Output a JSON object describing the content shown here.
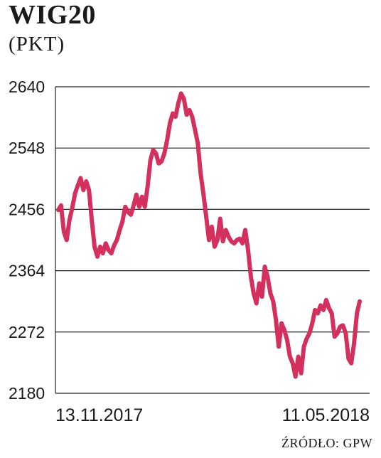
{
  "chart_data": {
    "type": "line",
    "title": "WIG20",
    "subtitle": "(PKT)",
    "source": "ŹRÓDŁO: GPW",
    "x_start_label": "13.11.2017",
    "x_end_label": "11.05.2018",
    "ylim": [
      2180,
      2640
    ],
    "yticks": [
      "2640",
      "2548",
      "2456",
      "2364",
      "2272",
      "2180"
    ],
    "grid": true,
    "series": [
      {
        "color": "#d3305d",
        "values": [
          2455,
          2462,
          2422,
          2410,
          2440,
          2458,
          2480,
          2492,
          2503,
          2485,
          2498,
          2485,
          2440,
          2400,
          2385,
          2400,
          2390,
          2405,
          2395,
          2390,
          2402,
          2410,
          2425,
          2438,
          2460,
          2452,
          2448,
          2462,
          2478,
          2460,
          2475,
          2460,
          2490,
          2530,
          2545,
          2540,
          2525,
          2528,
          2540,
          2560,
          2585,
          2600,
          2595,
          2615,
          2630,
          2622,
          2598,
          2605,
          2595,
          2575,
          2555,
          2510,
          2480,
          2445,
          2410,
          2430,
          2400,
          2410,
          2442,
          2408,
          2425,
          2415,
          2408,
          2405,
          2410,
          2412,
          2405,
          2425,
          2395,
          2355,
          2330,
          2315,
          2345,
          2325,
          2370,
          2355,
          2330,
          2318,
          2290,
          2250,
          2285,
          2275,
          2260,
          2235,
          2225,
          2205,
          2235,
          2210,
          2250,
          2262,
          2270,
          2285,
          2305,
          2300,
          2312,
          2305,
          2320,
          2308,
          2300,
          2265,
          2270,
          2280,
          2282,
          2270,
          2232,
          2225,
          2255,
          2300,
          2318
        ]
      }
    ]
  }
}
